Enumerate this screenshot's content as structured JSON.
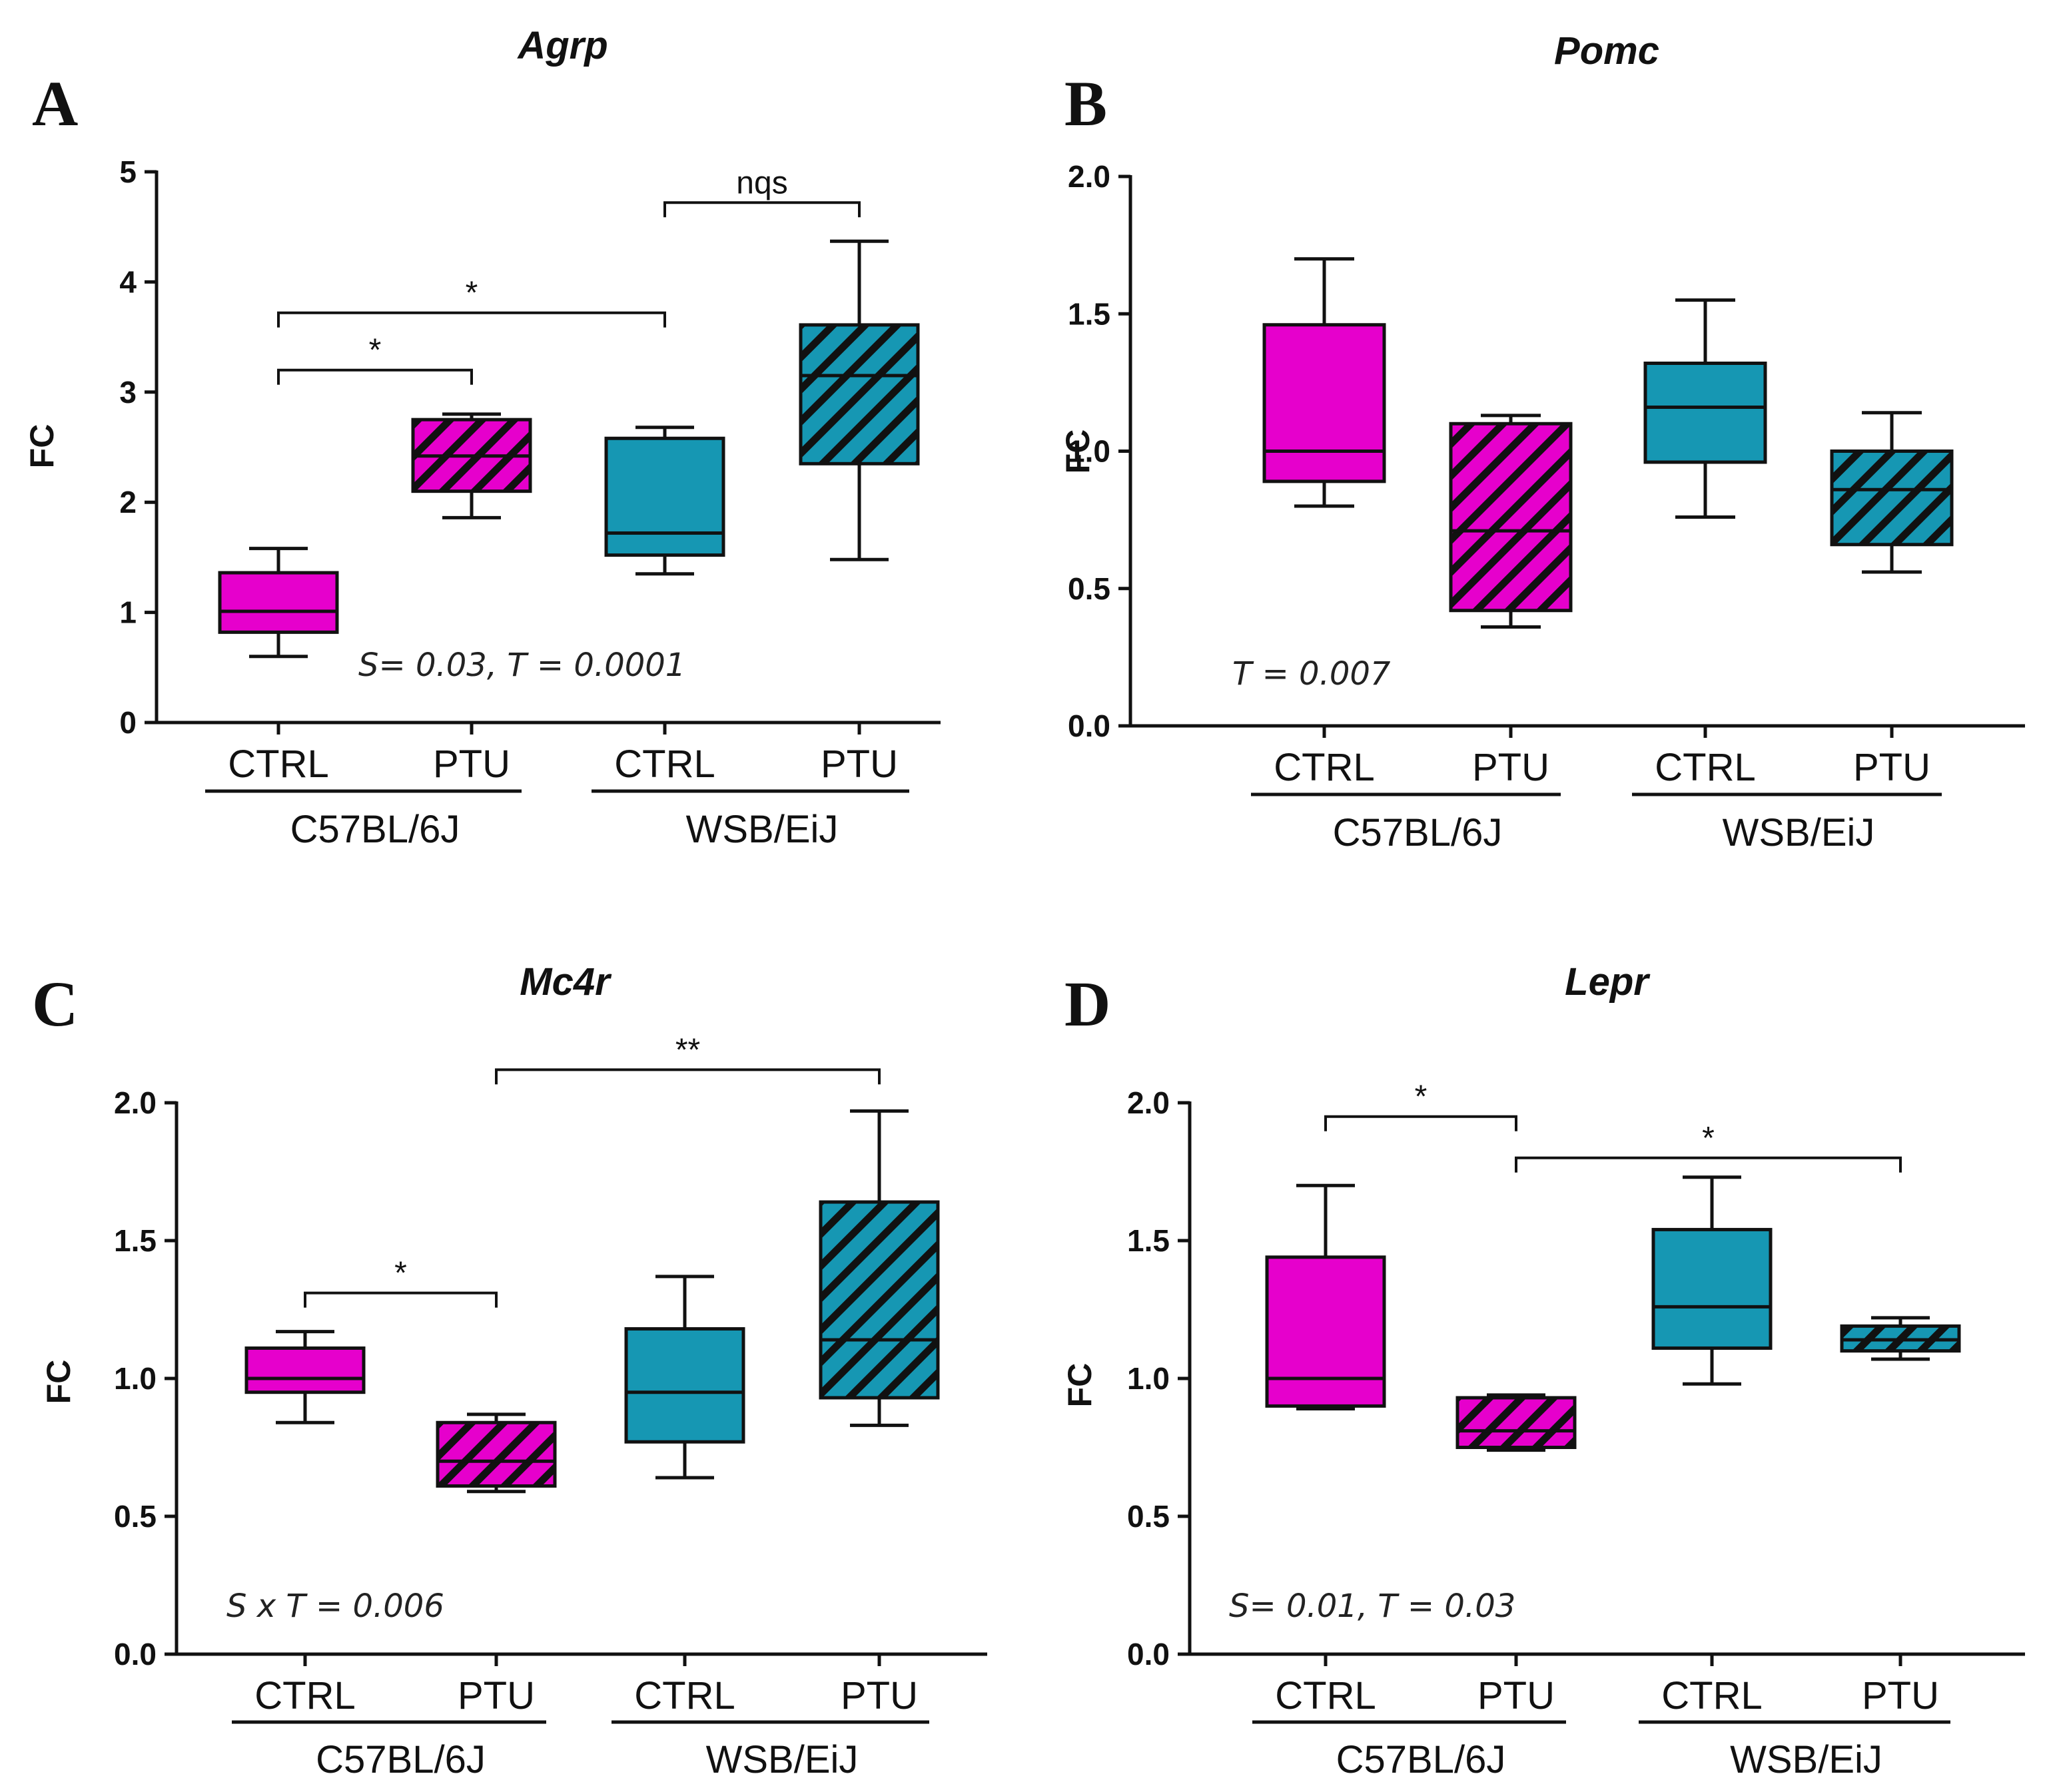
{
  "colors": {
    "ctrl_c57": "#e600cc",
    "ptu_c57": "#e600cc",
    "ctrl_wsb": "#1697b3",
    "ptu_wsb": "#1697b3",
    "stroke": "#111111"
  },
  "chart_data": [
    {
      "type": "box",
      "panel": "A",
      "title": "Agrp",
      "ylabel": "FC",
      "ylim": [
        0,
        5
      ],
      "yticks": [
        "0",
        "1",
        "2",
        "3",
        "4",
        "5"
      ],
      "ytick_values": [
        0,
        1,
        2,
        3,
        4,
        5
      ],
      "categories": [
        "CTRL",
        "PTU",
        "CTRL",
        "PTU"
      ],
      "groups": [
        {
          "label": "C57BL/6J",
          "members": [
            0,
            1
          ]
        },
        {
          "label": "WSB/EiJ",
          "members": [
            2,
            3
          ]
        }
      ],
      "boxes": [
        {
          "min": 0.6,
          "q1": 0.82,
          "median": 1.01,
          "q3": 1.36,
          "max": 1.58
        },
        {
          "min": 1.86,
          "q1": 2.1,
          "median": 2.42,
          "q3": 2.75,
          "max": 2.8
        },
        {
          "min": 1.35,
          "q1": 1.52,
          "median": 1.72,
          "q3": 2.58,
          "max": 2.68
        },
        {
          "min": 1.48,
          "q1": 2.35,
          "median": 3.15,
          "q3": 3.61,
          "max": 4.37
        }
      ],
      "significance": [
        {
          "from": 0,
          "to": 1,
          "label": "*",
          "y": 3.2
        },
        {
          "from": 0,
          "to": 2,
          "label": "*",
          "y": 3.72
        },
        {
          "from": 2,
          "to": 3,
          "label": "nqs",
          "y": 4.72
        }
      ],
      "annotation": "S= 0.03, T = 0.0001"
    },
    {
      "type": "box",
      "panel": "B",
      "title": "Pomc",
      "ylabel": "FC",
      "ylim": [
        0,
        2
      ],
      "yticks": [
        "0.0",
        "0.5",
        "1.0",
        "1.5",
        "2.0"
      ],
      "ytick_values": [
        0,
        0.5,
        1,
        1.5,
        2
      ],
      "categories": [
        "CTRL",
        "PTU",
        "CTRL",
        "PTU"
      ],
      "groups": [
        {
          "label": "C57BL/6J",
          "members": [
            0,
            1
          ]
        },
        {
          "label": "WSB/EiJ",
          "members": [
            2,
            3
          ]
        }
      ],
      "boxes": [
        {
          "min": 0.8,
          "q1": 0.89,
          "median": 1.0,
          "q3": 1.46,
          "max": 1.7
        },
        {
          "min": 0.36,
          "q1": 0.42,
          "median": 0.71,
          "q3": 1.1,
          "max": 1.13
        },
        {
          "min": 0.76,
          "q1": 0.96,
          "median": 1.16,
          "q3": 1.32,
          "max": 1.55
        },
        {
          "min": 0.56,
          "q1": 0.66,
          "median": 0.86,
          "q3": 1.0,
          "max": 1.14
        }
      ],
      "significance": [],
      "annotation": "T = 0.007"
    },
    {
      "type": "box",
      "panel": "C",
      "title": "Mc4r",
      "ylabel": "FC",
      "ylim": [
        0,
        2
      ],
      "yticks": [
        "0.0",
        "0.5",
        "1.0",
        "1.5",
        "2.0"
      ],
      "ytick_values": [
        0,
        0.5,
        1,
        1.5,
        2
      ],
      "categories": [
        "CTRL",
        "PTU",
        "CTRL",
        "PTU"
      ],
      "groups": [
        {
          "label": "C57BL/6J",
          "members": [
            0,
            1
          ]
        },
        {
          "label": "WSB/EiJ",
          "members": [
            2,
            3
          ]
        }
      ],
      "boxes": [
        {
          "min": 0.84,
          "q1": 0.95,
          "median": 1.0,
          "q3": 1.11,
          "max": 1.17
        },
        {
          "min": 0.59,
          "q1": 0.61,
          "median": 0.7,
          "q3": 0.84,
          "max": 0.87
        },
        {
          "min": 0.64,
          "q1": 0.77,
          "median": 0.95,
          "q3": 1.18,
          "max": 1.37
        },
        {
          "min": 0.83,
          "q1": 0.93,
          "median": 1.14,
          "q3": 1.64,
          "max": 1.97
        }
      ],
      "significance": [
        {
          "from": 0,
          "to": 1,
          "label": "*",
          "y": 1.31
        },
        {
          "from": 1,
          "to": 3,
          "label": "**",
          "y": 2.12
        }
      ],
      "annotation": "S x T = 0.006"
    },
    {
      "type": "box",
      "panel": "D",
      "title": "Lepr",
      "ylabel": "FC",
      "ylim": [
        0,
        2
      ],
      "yticks": [
        "0.0",
        "0.5",
        "1.0",
        "1.5",
        "2.0"
      ],
      "ytick_values": [
        0,
        0.5,
        1,
        1.5,
        2
      ],
      "categories": [
        "CTRL",
        "PTU",
        "CTRL",
        "PTU"
      ],
      "groups": [
        {
          "label": "C57BL/6J",
          "members": [
            0,
            1
          ]
        },
        {
          "label": "WSB/EiJ",
          "members": [
            2,
            3
          ]
        }
      ],
      "boxes": [
        {
          "min": 0.89,
          "q1": 0.9,
          "median": 1.0,
          "q3": 1.44,
          "max": 1.7
        },
        {
          "min": 0.74,
          "q1": 0.75,
          "median": 0.81,
          "q3": 0.93,
          "max": 0.94
        },
        {
          "min": 0.98,
          "q1": 1.11,
          "median": 1.26,
          "q3": 1.54,
          "max": 1.73
        },
        {
          "min": 1.07,
          "q1": 1.1,
          "median": 1.14,
          "q3": 1.19,
          "max": 1.22
        }
      ],
      "significance": [
        {
          "from": 0,
          "to": 1,
          "label": "*",
          "y": 1.95
        },
        {
          "from": 1,
          "to": 3,
          "label": "*",
          "y": 1.8
        }
      ],
      "annotation": "S= 0.01, T = 0.03"
    }
  ]
}
